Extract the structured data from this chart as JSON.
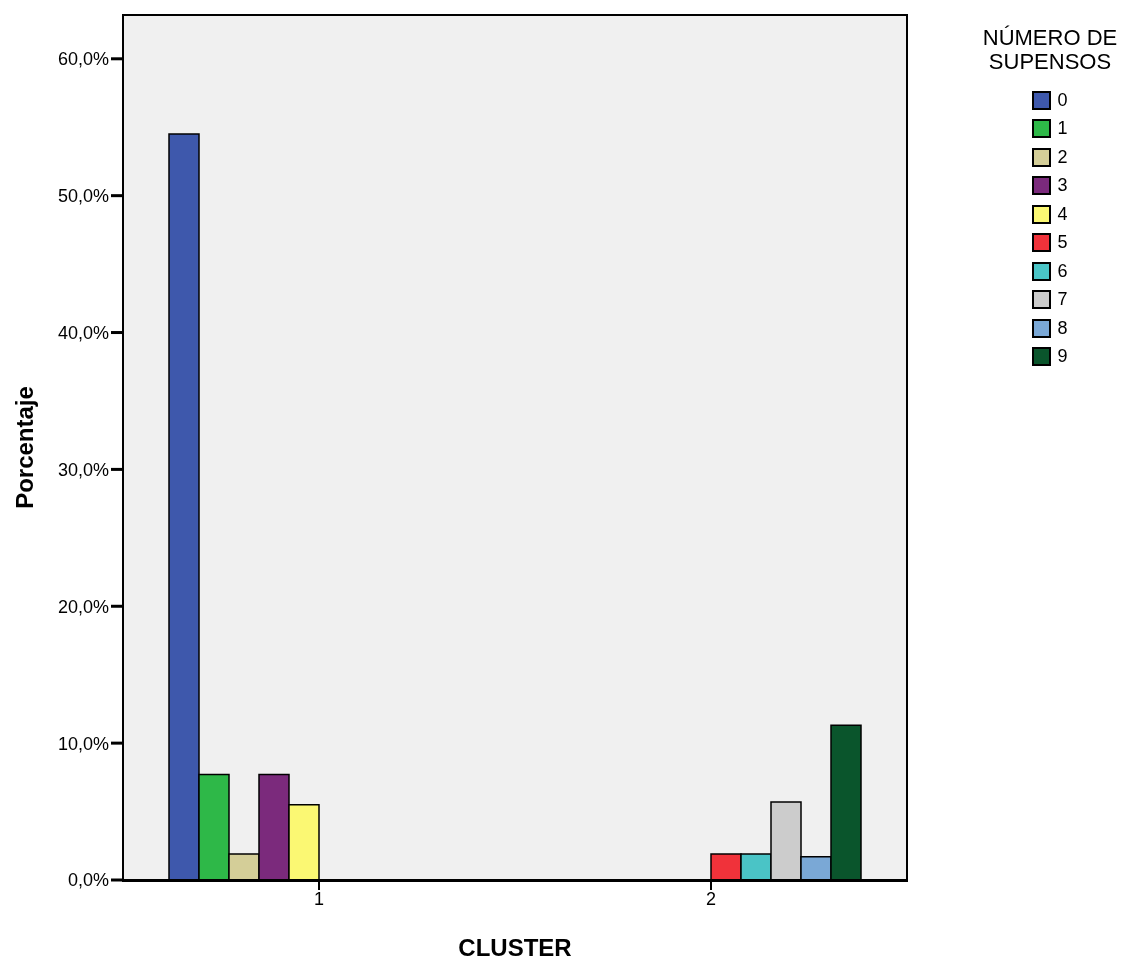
{
  "chart_data": {
    "type": "bar",
    "xlabel": "CLUSTER",
    "ylabel": "Porcentaje",
    "legend_title": "NÚMERO DE SUPENSOS",
    "legend": "top right",
    "categories": [
      "1",
      "2"
    ],
    "ylim": [
      0,
      63.2
    ],
    "yticks": [
      {
        "value": 0,
        "label": "0,0%"
      },
      {
        "value": 10,
        "label": "10,0%"
      },
      {
        "value": 20,
        "label": "20,0%"
      },
      {
        "value": 30,
        "label": "30,0%"
      },
      {
        "value": 40,
        "label": "40,0%"
      },
      {
        "value": 50,
        "label": "50,0%"
      },
      {
        "value": 60,
        "label": "60,0%"
      }
    ],
    "series": [
      {
        "name": "0",
        "color": "#3e58ac",
        "values": [
          54.5,
          0
        ]
      },
      {
        "name": "1",
        "color": "#2eb848",
        "values": [
          7.7,
          0
        ]
      },
      {
        "name": "2",
        "color": "#d4ce98",
        "values": [
          1.9,
          0
        ]
      },
      {
        "name": "3",
        "color": "#7b2a7c",
        "values": [
          7.7,
          0
        ]
      },
      {
        "name": "4",
        "color": "#fbf873",
        "values": [
          5.5,
          0
        ]
      },
      {
        "name": "5",
        "color": "#f0323a",
        "values": [
          0,
          1.9
        ]
      },
      {
        "name": "6",
        "color": "#4ac4c6",
        "values": [
          0,
          1.9
        ]
      },
      {
        "name": "7",
        "color": "#cccccc",
        "values": [
          0,
          5.7
        ]
      },
      {
        "name": "8",
        "color": "#7aa8d6",
        "values": [
          0,
          1.7
        ]
      },
      {
        "name": "9",
        "color": "#0a552c",
        "values": [
          0,
          11.3
        ]
      }
    ]
  }
}
